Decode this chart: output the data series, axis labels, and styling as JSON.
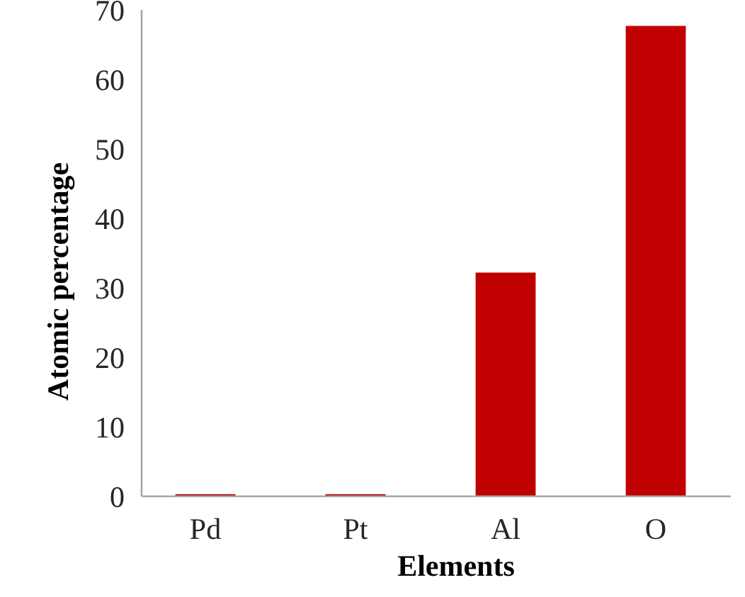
{
  "chart_data": {
    "type": "bar",
    "xlabel": "Elements",
    "ylabel": "Atomic percentage",
    "categories": [
      "Pd",
      "Pt",
      "Al",
      "O"
    ],
    "values": [
      0.3,
      0.3,
      32.2,
      67.7
    ],
    "color": "#c00000",
    "ylim": [
      0,
      70
    ],
    "yticks": [
      0,
      10,
      20,
      30,
      40,
      50,
      60,
      70
    ],
    "grid": false
  }
}
